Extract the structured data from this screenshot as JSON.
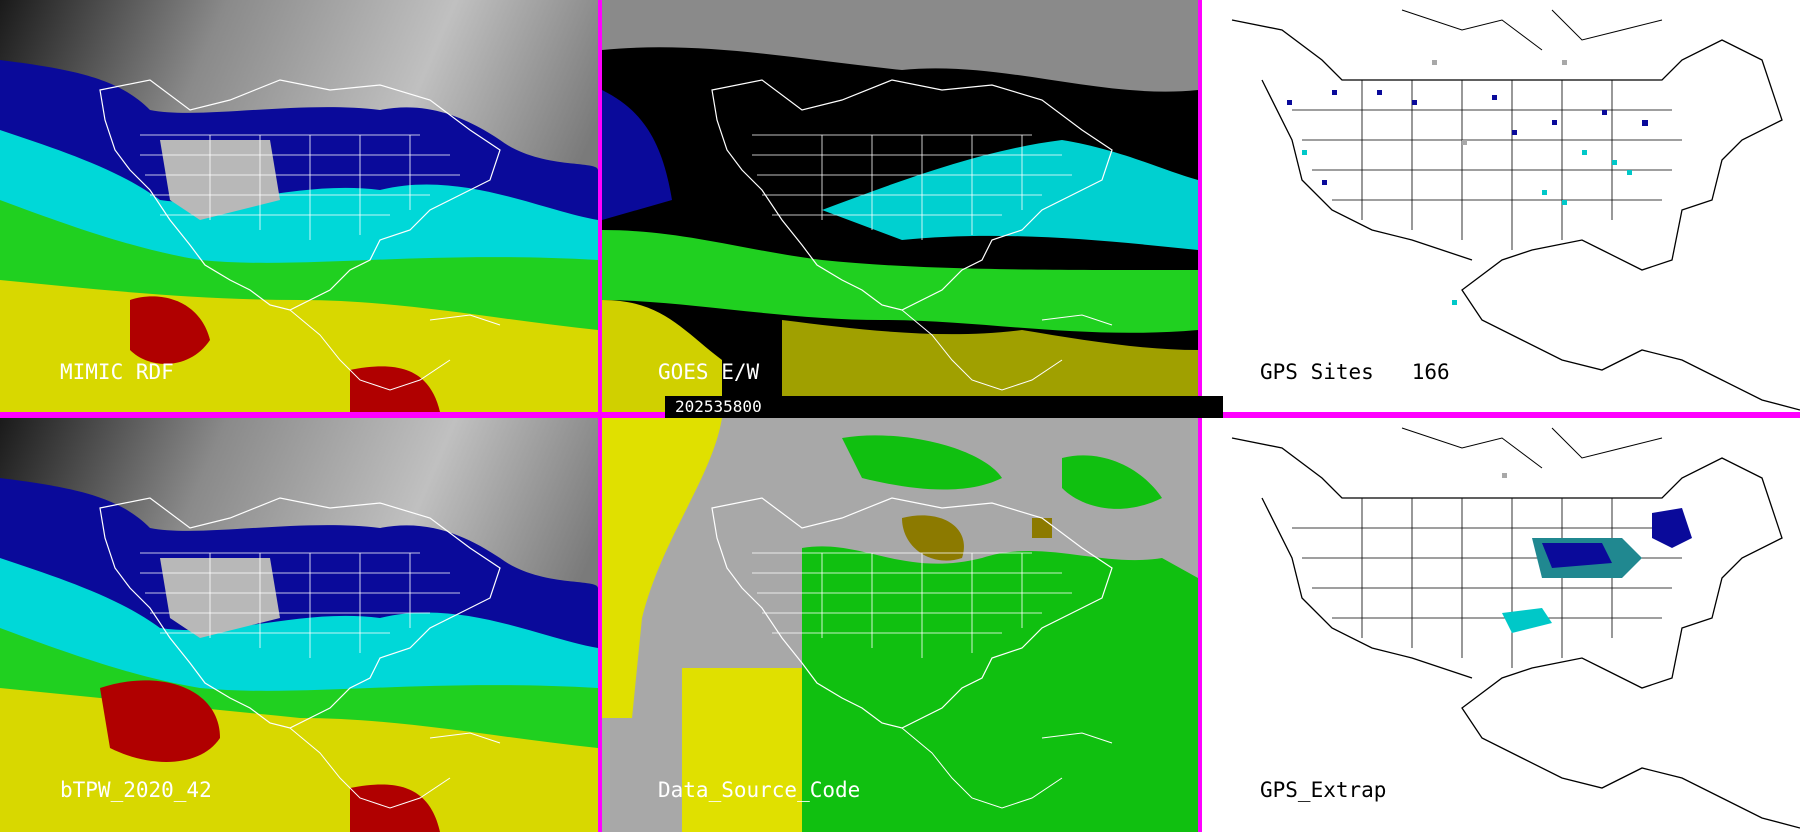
{
  "panels": {
    "mimic_rdf": {
      "label": "MIMIC RDF"
    },
    "goes_ew": {
      "label": "GOES E/W"
    },
    "gps_sites": {
      "label": "GPS Sites",
      "count": "166"
    },
    "btpw": {
      "label": "bTPW_2020_42"
    },
    "data_source_code": {
      "label": "Data_Source_Code"
    },
    "gps_extrap": {
      "label": "GPS_Extrap"
    }
  },
  "timestamp": "202535800",
  "colors": {
    "divider": "#ff00ff",
    "dry": "#0a0a9a",
    "moist_low": "#00e0e0",
    "moist_mid": "#20e020",
    "moist_high": "#e0e000",
    "very_moist": "#c00000",
    "source_gray": "#a8a8a8",
    "source_yellow": "#e0e000",
    "source_green": "#10c010"
  }
}
